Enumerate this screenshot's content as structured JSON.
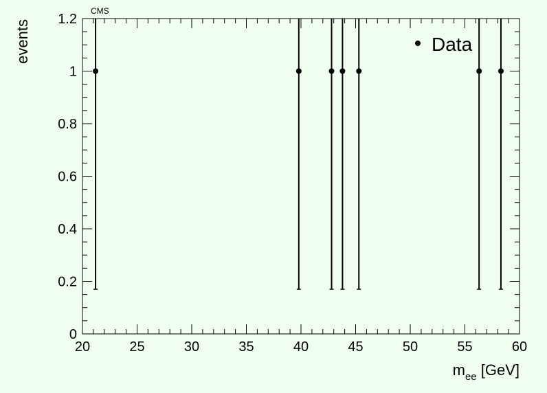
{
  "chart_data": {
    "type": "scatter",
    "title": "CMS",
    "xlabel_main": "m",
    "xlabel_sub": "ee",
    "xlabel_unit": " [GeV]",
    "ylabel": "events",
    "xlim": [
      20,
      60
    ],
    "ylim": [
      0,
      1.2
    ],
    "x_ticks": [
      "20",
      "25",
      "30",
      "35",
      "40",
      "45",
      "50",
      "55",
      "60"
    ],
    "x_tick_values": [
      20,
      25,
      30,
      35,
      40,
      45,
      50,
      55,
      60
    ],
    "y_ticks": [
      "0",
      "0.2",
      "0.4",
      "0.6",
      "0.8",
      "1",
      "1.2"
    ],
    "y_tick_values": [
      0,
      0.2,
      0.4,
      0.6,
      0.8,
      1.0,
      1.2
    ],
    "grid": false,
    "legend_position": "top-right",
    "series": [
      {
        "name": "Data",
        "color": "#000000",
        "points": [
          {
            "x": 21.2,
            "y": 1,
            "err_low": 0.83,
            "err_high": 2.3
          },
          {
            "x": 39.8,
            "y": 1,
            "err_low": 0.83,
            "err_high": 2.3
          },
          {
            "x": 42.8,
            "y": 1,
            "err_low": 0.83,
            "err_high": 2.3
          },
          {
            "x": 43.8,
            "y": 1,
            "err_low": 0.83,
            "err_high": 2.3
          },
          {
            "x": 45.3,
            "y": 1,
            "err_low": 0.83,
            "err_high": 2.3
          },
          {
            "x": 56.3,
            "y": 1,
            "err_low": 0.83,
            "err_high": 2.3
          },
          {
            "x": 58.3,
            "y": 1,
            "err_low": 0.83,
            "err_high": 2.3
          }
        ]
      }
    ]
  }
}
